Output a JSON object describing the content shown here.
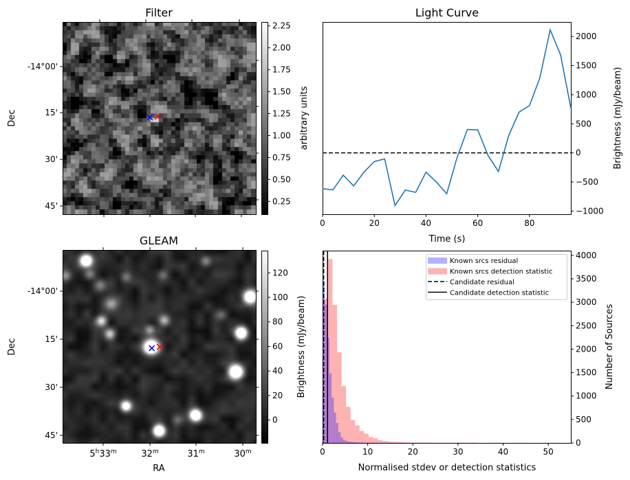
{
  "panels": {
    "filter": {
      "title": "Filter",
      "ylabel": "Dec",
      "dec_tick_labels": [
        "-14°00'",
        "15'",
        "30'",
        "45'"
      ],
      "colorbar": {
        "label": "arbitrary units",
        "ticks": [
          0.25,
          0.5,
          0.75,
          1.0,
          1.25,
          1.5,
          1.75,
          2.0,
          2.25
        ],
        "tick_labels": [
          "0.25",
          "0.50",
          "0.75",
          "1.00",
          "1.25",
          "1.50",
          "1.75",
          "2.00",
          "2.25"
        ],
        "range": [
          0.1,
          2.3
        ]
      }
    },
    "gleam": {
      "title": "GLEAM",
      "xlabel": "RA",
      "ylabel": "Dec",
      "dec_tick_labels": [
        "-14°00'",
        "15'",
        "30'",
        "45'"
      ],
      "ra_tick_labels": [
        {
          "h": "5",
          "m": "33"
        },
        {
          "h": "",
          "m": "32"
        },
        {
          "h": "",
          "m": "31"
        },
        {
          "h": "",
          "m": "30"
        }
      ],
      "ra_unit_h": "h",
      "ra_unit_m": "m",
      "colorbar": {
        "label": "Brightness (mJy/beam)",
        "ticks": [
          0,
          20,
          40,
          60,
          80,
          100,
          120
        ],
        "tick_labels": [
          "0",
          "20",
          "40",
          "60",
          "80",
          "100",
          "120"
        ],
        "range": [
          -18,
          138
        ]
      },
      "sources": [
        {
          "ra_min": 33.38,
          "dec_arcmin": -9.6,
          "peak": 150,
          "size": 1.0
        },
        {
          "ra_min": 29.85,
          "dec_arcmin": 1.7,
          "peak": 150,
          "size": 1.1
        },
        {
          "ra_min": 30.04,
          "dec_arcmin": 12.9,
          "peak": 150,
          "size": 1.0
        },
        {
          "ra_min": 31.98,
          "dec_arcmin": 17.4,
          "peak": 160,
          "size": 1.2
        },
        {
          "ra_min": 30.15,
          "dec_arcmin": 25.1,
          "peak": 150,
          "size": 1.2
        },
        {
          "ra_min": 32.52,
          "dec_arcmin": 35.8,
          "peak": 115,
          "size": 0.9
        },
        {
          "ra_min": 31.02,
          "dec_arcmin": 38.6,
          "peak": 150,
          "size": 1.0
        },
        {
          "ra_min": 31.81,
          "dec_arcmin": 43.5,
          "peak": 150,
          "size": 1.0
        },
        {
          "ra_min": 33.05,
          "dec_arcmin": 9.2,
          "peak": 70,
          "size": 0.9
        },
        {
          "ra_min": 32.87,
          "dec_arcmin": 13.3,
          "peak": 60,
          "size": 0.9
        },
        {
          "ra_min": 31.7,
          "dec_arcmin": 9.0,
          "peak": 55,
          "size": 0.9
        },
        {
          "ra_min": 32.84,
          "dec_arcmin": 3.9,
          "peak": 50,
          "size": 1.1
        },
        {
          "ra_min": 33.07,
          "dec_arcmin": -1.9,
          "peak": 40,
          "size": 1.0
        },
        {
          "ra_min": 33.3,
          "dec_arcmin": -5.4,
          "peak": 35,
          "size": 0.9
        },
        {
          "ra_min": 33.82,
          "dec_arcmin": -4.9,
          "peak": 40,
          "size": 0.9
        },
        {
          "ra_min": 32.01,
          "dec_arcmin": 12.0,
          "peak": 40,
          "size": 0.8
        },
        {
          "ra_min": 30.8,
          "dec_arcmin": -9.4,
          "peak": 40,
          "size": 0.9
        },
        {
          "ra_min": 32.52,
          "dec_arcmin": -4.5,
          "peak": 30,
          "size": 0.9
        },
        {
          "ra_min": 31.72,
          "dec_arcmin": -5.1,
          "peak": 30,
          "size": 0.9
        },
        {
          "ra_min": 30.46,
          "dec_arcmin": 7.3,
          "peak": 25,
          "size": 0.9
        },
        {
          "ra_min": 31.42,
          "dec_arcmin": 40.0,
          "peak": 30,
          "size": 0.9
        }
      ]
    },
    "markers": {
      "blue": {
        "ra_min": 31.96,
        "dec_arcmin": 17.8,
        "color": "#0000ff"
      },
      "red": {
        "ra_min": 31.79,
        "dec_arcmin": 17.4,
        "color": "#ff0000"
      }
    }
  },
  "chart_data": [
    {
      "type": "line",
      "title": "Light Curve",
      "xlabel": "Time (s)",
      "ylabel": "Brightness (mJy/beam)",
      "xlim": [
        0,
        96
      ],
      "ylim": [
        -1055,
        2250
      ],
      "xticks": [
        0,
        20,
        40,
        60,
        80
      ],
      "yticks": [
        -1000,
        -500,
        0,
        500,
        1000,
        1500,
        2000
      ],
      "x": [
        0,
        4,
        8,
        12,
        16,
        20,
        24,
        28,
        32,
        36,
        40,
        44,
        48,
        52,
        56,
        60,
        64,
        68,
        72,
        76,
        80,
        84,
        88,
        92,
        96
      ],
      "series": [
        {
          "name": "light curve",
          "color": "#1f77b4",
          "values": [
            -616,
            -635,
            -383,
            -568,
            -331,
            -150,
            -103,
            -904,
            -639,
            -679,
            -331,
            -501,
            -702,
            -79,
            402,
            395,
            -47,
            -320,
            300,
            702,
            813,
            1286,
            2115,
            1689,
            769
          ]
        }
      ],
      "hlines": [
        {
          "y": 0,
          "style": "dashed",
          "color": "#000000"
        }
      ],
      "grid": false
    },
    {
      "type": "bar",
      "xlabel": "Normalised stdev or detection statistics",
      "ylabel": "Number of Sources",
      "xlim": [
        0,
        55
      ],
      "ylim": [
        0,
        4100
      ],
      "xticks": [
        0,
        10,
        20,
        30,
        40,
        50
      ],
      "yticks": [
        0,
        500,
        1000,
        1500,
        2000,
        2500,
        3000,
        3500,
        4000
      ],
      "legend_position": "top-right",
      "series": [
        {
          "name": "Known srcs residual",
          "color": "#0000ff",
          "alpha": 0.3,
          "bin_start": 0,
          "bin_width": 0.5,
          "values": [
            3455,
            2950,
            2240,
            1480,
            965,
            647,
            426,
            230,
            118,
            69,
            44,
            30,
            22,
            18,
            15,
            12,
            10,
            8,
            7,
            6,
            5,
            5,
            4,
            4,
            3,
            3,
            3,
            2,
            2,
            2,
            2,
            2,
            2,
            2,
            2,
            2,
            2,
            2,
            2,
            2,
            2,
            2,
            2,
            2,
            2,
            2,
            3
          ]
        },
        {
          "name": "Known srcs detection statistic",
          "color": "#ff0000",
          "alpha": 0.3,
          "bin_start": 0.2,
          "bin_width": 1.0,
          "values": [
            3073,
            3921,
            2941,
            1931,
            1211,
            770,
            490,
            373,
            255,
            196,
            127,
            98,
            59,
            44,
            34,
            25,
            20,
            15,
            10,
            6,
            5,
            5,
            5,
            5,
            5,
            5,
            5,
            5,
            5,
            5,
            5,
            5,
            5,
            4,
            0,
            0,
            0,
            3,
            3,
            3,
            0,
            0,
            2,
            0,
            2,
            0,
            0,
            0,
            0,
            2,
            0,
            2
          ]
        }
      ],
      "vlines": [
        {
          "name": "Candidate residual",
          "x": 0.25,
          "style": "dashed",
          "color": "#000000"
        },
        {
          "name": "Candidate detection statistic",
          "x": 1.1,
          "style": "solid",
          "color": "#000000"
        }
      ],
      "legend": [
        "Known srcs residual",
        "Known srcs detection statistic",
        "Candidate residual",
        "Candidate detection statistic"
      ]
    }
  ]
}
